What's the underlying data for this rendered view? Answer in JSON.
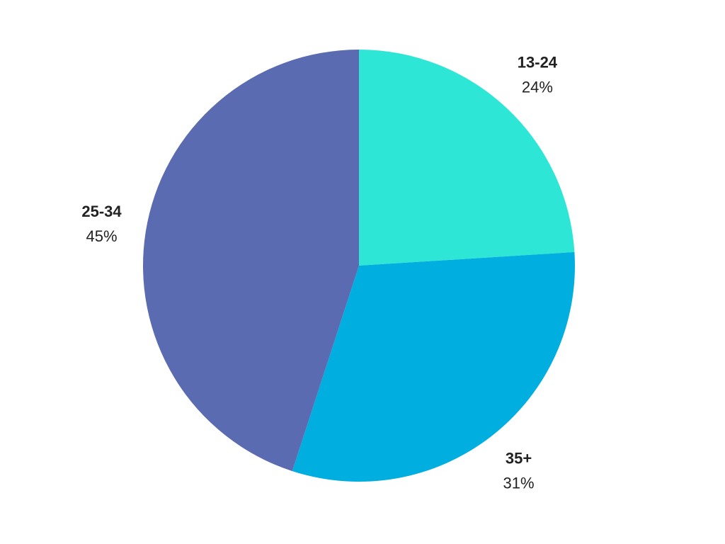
{
  "chart_data": {
    "type": "pie",
    "categories": [
      "13-24",
      "35+",
      "25-34"
    ],
    "values": [
      24,
      31,
      45
    ],
    "value_labels": [
      "24%",
      "31%",
      "45%"
    ],
    "colors": [
      "#2ee6d6",
      "#00aee0",
      "#5a6bb2"
    ]
  }
}
